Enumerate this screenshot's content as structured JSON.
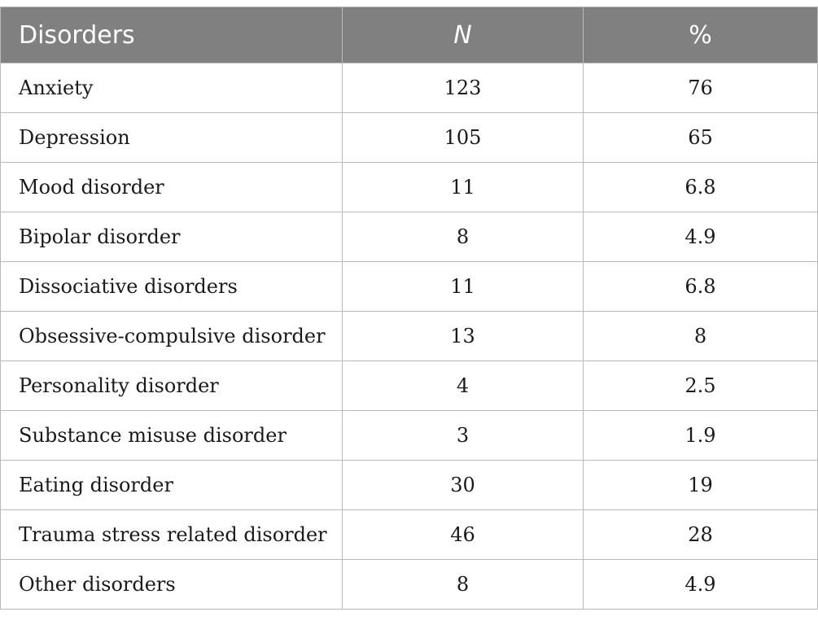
{
  "table": {
    "headers": {
      "disorders": "Disorders",
      "n": "N",
      "percent": "%"
    },
    "rows": [
      {
        "disorder": "Anxiety",
        "n": "123",
        "percent": "76"
      },
      {
        "disorder": "Depression",
        "n": "105",
        "percent": "65"
      },
      {
        "disorder": "Mood disorder",
        "n": "11",
        "percent": "6.8"
      },
      {
        "disorder": "Bipolar disorder",
        "n": "8",
        "percent": "4.9"
      },
      {
        "disorder": "Dissociative disorders",
        "n": "11",
        "percent": "6.8"
      },
      {
        "disorder": "Obsessive-compulsive disorder",
        "n": "13",
        "percent": "8"
      },
      {
        "disorder": "Personality disorder",
        "n": "4",
        "percent": "2.5"
      },
      {
        "disorder": "Substance misuse disorder",
        "n": "3",
        "percent": "1.9"
      },
      {
        "disorder": "Eating disorder",
        "n": "30",
        "percent": "19"
      },
      {
        "disorder": "Trauma stress related disorder",
        "n": "46",
        "percent": "28"
      },
      {
        "disorder": "Other disorders",
        "n": "8",
        "percent": "4.9"
      }
    ]
  },
  "colors": {
    "header_background": "#808080",
    "header_text": "#ffffff",
    "border": "#b9b9b9"
  }
}
